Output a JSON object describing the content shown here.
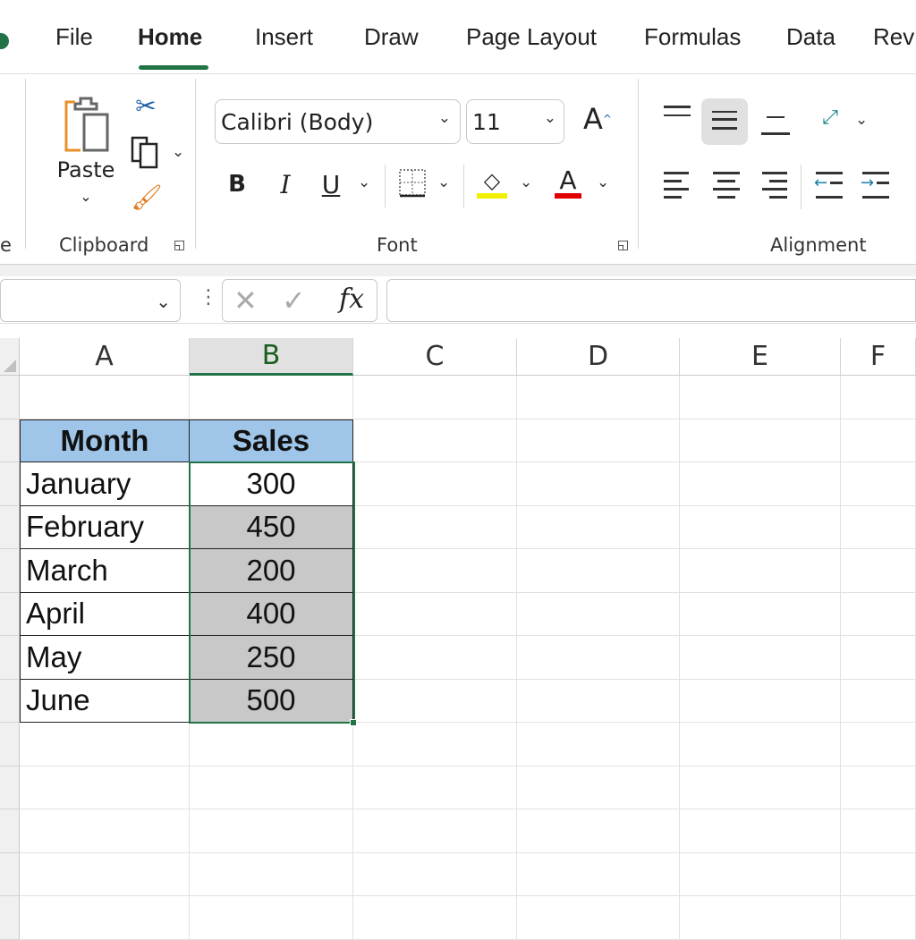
{
  "tabs": [
    {
      "label": "File"
    },
    {
      "label": "Home"
    },
    {
      "label": "Insert"
    },
    {
      "label": "Draw"
    },
    {
      "label": "Page Layout"
    },
    {
      "label": "Formulas"
    },
    {
      "label": "Data"
    },
    {
      "label": "Rev"
    }
  ],
  "active_tab": "Home",
  "ribbon": {
    "prev_group_fragment": "e",
    "clipboard": {
      "label": "Clipboard",
      "paste": "Paste"
    },
    "font": {
      "label": "Font",
      "font_name": "Calibri (Body)",
      "font_size": "11",
      "bold": "B",
      "italic": "I",
      "underline": "U",
      "font_color_glyph": "A",
      "grow_glyph": "A",
      "highlight_color": "#f0f000",
      "font_color": "#e00000"
    },
    "alignment": {
      "label": "Alignment"
    }
  },
  "formula_bar": {
    "fx": "fx",
    "value": ""
  },
  "columns": [
    "A",
    "B",
    "C",
    "D",
    "E",
    "F"
  ],
  "selected_column": "B",
  "table": {
    "headers": [
      "Month",
      "Sales"
    ],
    "rows": [
      [
        "January",
        "300"
      ],
      [
        "February",
        "450"
      ],
      [
        "March",
        "200"
      ],
      [
        "April",
        "400"
      ],
      [
        "May",
        "250"
      ],
      [
        "June",
        "500"
      ]
    ],
    "header_fill": "#9fc5e8",
    "selection_fill": "#c8c8c8",
    "accent": "#217346"
  }
}
